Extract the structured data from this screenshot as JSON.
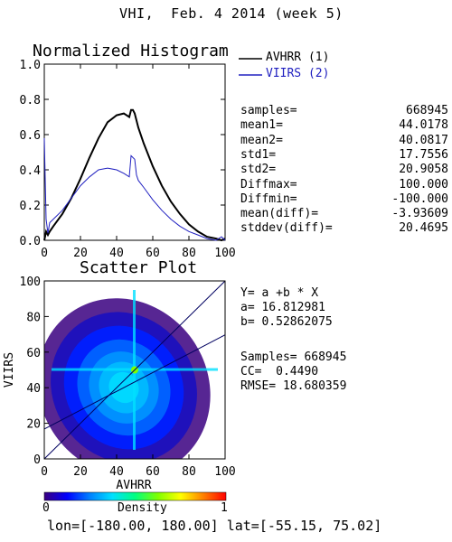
{
  "page_title": "VHI,  Feb. 4 2014 (week 5)",
  "footer": {
    "lon_label": "lon=",
    "lon_range": "[-180.00, 180.00]",
    "lat_label": "lat=",
    "lat_range": "[-55.15, 75.02]"
  },
  "stats": [
    {
      "label": "samples=",
      "value": "668945"
    },
    {
      "label": "mean1=",
      "value": "44.0178"
    },
    {
      "label": "mean2=",
      "value": "40.0817"
    },
    {
      "label": "std1=",
      "value": "17.7556"
    },
    {
      "label": "std2=",
      "value": "20.9058"
    },
    {
      "label": "Diffmax=",
      "value": "100.000"
    },
    {
      "label": "Diffmin=",
      "value": "-100.000"
    },
    {
      "label": "mean(diff)=",
      "value": "-3.93609"
    },
    {
      "label": "stddev(diff)=",
      "value": "20.4695"
    }
  ],
  "regression": {
    "equation": "Y= a +b * X",
    "a_text": "a= 16.812981",
    "b_text": "b= 0.52862075",
    "samples_text": "Samples= 668945",
    "cc_text": "CC=  0.4490",
    "rmse_text": "RMSE= 18.680359"
  },
  "colorbar": {
    "label": "Density",
    "min_label": "0",
    "max_label": "1",
    "colors": [
      "#3a0080",
      "#0000ff",
      "#0080ff",
      "#00e0ff",
      "#00ff80",
      "#80ff00",
      "#ffff00",
      "#ff8000",
      "#ff0000"
    ]
  },
  "chart_data": [
    {
      "type": "line",
      "title": "Normalized Histogram",
      "xlim": [
        0,
        100
      ],
      "ylim": [
        0,
        1.0
      ],
      "xticks": [
        "0",
        "20",
        "40",
        "60",
        "80",
        "100"
      ],
      "yticks": [
        "0.0",
        "0.2",
        "0.4",
        "0.6",
        "0.8",
        "1.0"
      ],
      "x": [
        0,
        1,
        2,
        3,
        5,
        10,
        15,
        20,
        25,
        30,
        35,
        40,
        44,
        47,
        48,
        49,
        50,
        51,
        52,
        55,
        60,
        65,
        70,
        75,
        80,
        85,
        90,
        95,
        98,
        100
      ],
      "series": [
        {
          "name": "AVHRR (1)",
          "color": "#000000",
          "values": [
            0.0,
            0.05,
            0.03,
            0.05,
            0.08,
            0.15,
            0.24,
            0.35,
            0.47,
            0.58,
            0.67,
            0.71,
            0.72,
            0.7,
            0.74,
            0.74,
            0.72,
            0.68,
            0.64,
            0.55,
            0.42,
            0.31,
            0.22,
            0.15,
            0.09,
            0.05,
            0.02,
            0.01,
            0.0,
            0.01
          ]
        },
        {
          "name": "VIIRS (2)",
          "color": "#2020c0",
          "values": [
            0.58,
            0.12,
            0.04,
            0.1,
            0.12,
            0.17,
            0.24,
            0.31,
            0.36,
            0.4,
            0.41,
            0.4,
            0.38,
            0.36,
            0.48,
            0.47,
            0.46,
            0.37,
            0.34,
            0.3,
            0.23,
            0.17,
            0.12,
            0.08,
            0.05,
            0.03,
            0.01,
            0.0,
            0.02,
            0.0
          ]
        }
      ]
    },
    {
      "type": "scatter",
      "title": "Scatter Plot",
      "xlabel": "AVHRR",
      "ylabel": "VIIRS",
      "xlim": [
        0,
        100
      ],
      "ylim": [
        0,
        100
      ],
      "xticks": [
        "0",
        "20",
        "40",
        "60",
        "80",
        "100"
      ],
      "yticks": [
        "0",
        "20",
        "40",
        "60",
        "80",
        "100"
      ],
      "regression": {
        "a": 16.812981,
        "b": 0.52862075
      },
      "samples": 668945,
      "density_center": [
        44.0,
        40.1
      ],
      "density_spread": [
        17.8,
        20.9
      ]
    }
  ]
}
